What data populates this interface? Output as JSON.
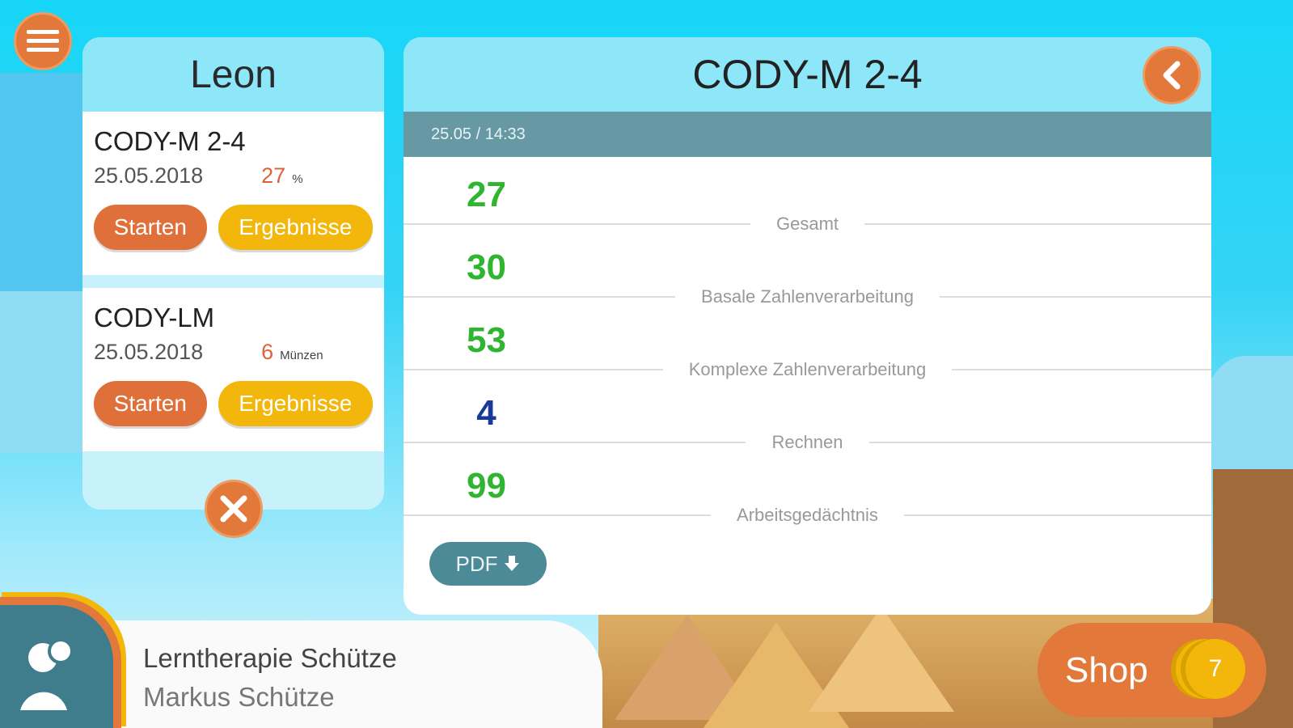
{
  "menu": {
    "icon": "hamburger-icon"
  },
  "student": {
    "name": "Leon",
    "tests": [
      {
        "title": "CODY-M 2-4",
        "date": "25.05.2018",
        "value": "27",
        "unit": "%",
        "start_label": "Starten",
        "results_label": "Ergebnisse"
      },
      {
        "title": "CODY-LM",
        "date": "25.05.2018",
        "value": "6",
        "unit": "Münzen",
        "start_label": "Starten",
        "results_label": "Ergebnisse"
      }
    ],
    "close_icon": "close-icon"
  },
  "results": {
    "title": "CODY-M 2-4",
    "back_icon": "chevron-left-icon",
    "timestamp": "25.05 / 14:33",
    "rows": [
      {
        "value": "27",
        "label": "Gesamt",
        "color": "#2fb52f"
      },
      {
        "value": "30",
        "label": "Basale Zahlenverarbeitung",
        "color": "#2fb52f"
      },
      {
        "value": "53",
        "label": "Komplexe Zahlenverarbeitung",
        "color": "#2fb52f"
      },
      {
        "value": "4",
        "label": "Rechnen",
        "color": "#1a3a9a"
      },
      {
        "value": "99",
        "label": "Arbeitsgedächtnis",
        "color": "#2fb52f"
      }
    ],
    "pdf_label": "PDF"
  },
  "account": {
    "practice": "Lerntherapie Schütze",
    "user": "Markus Schütze"
  },
  "shop": {
    "label": "Shop",
    "coins": "7"
  }
}
